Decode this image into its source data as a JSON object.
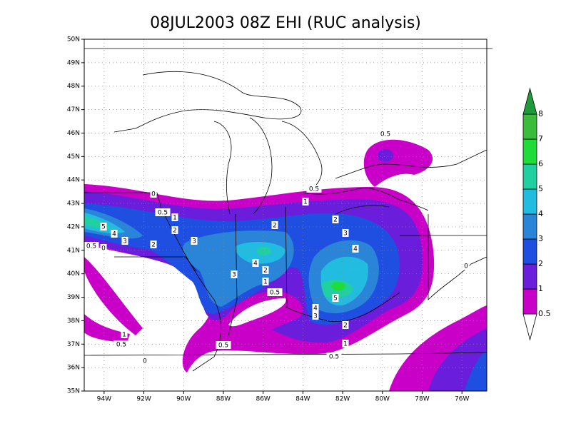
{
  "title": "08JUL2003 08Z EHI (RUC analysis)",
  "map": {
    "xlim": [
      -95,
      -74.75
    ],
    "ylim": [
      35,
      50
    ],
    "lat_ticks": [
      {
        "value": 35,
        "label": "35N"
      },
      {
        "value": 36,
        "label": "36N"
      },
      {
        "value": 37,
        "label": "37N"
      },
      {
        "value": 38,
        "label": "38N"
      },
      {
        "value": 39,
        "label": "39N"
      },
      {
        "value": 40,
        "label": "40N"
      },
      {
        "value": 41,
        "label": "41N"
      },
      {
        "value": 42,
        "label": "42N"
      },
      {
        "value": 43,
        "label": "43N"
      },
      {
        "value": 44,
        "label": "44N"
      },
      {
        "value": 45,
        "label": "45N"
      },
      {
        "value": 46,
        "label": "46N"
      },
      {
        "value": 47,
        "label": "47N"
      },
      {
        "value": 48,
        "label": "48N"
      },
      {
        "value": 49,
        "label": "49N"
      },
      {
        "value": 50,
        "label": "50N"
      }
    ],
    "lon_ticks": [
      {
        "value": -94,
        "label": "94W"
      },
      {
        "value": -92,
        "label": "92W"
      },
      {
        "value": -90,
        "label": "90W"
      },
      {
        "value": -88,
        "label": "88W"
      },
      {
        "value": -86,
        "label": "86W"
      },
      {
        "value": -84,
        "label": "84W"
      },
      {
        "value": -82,
        "label": "82W"
      },
      {
        "value": -80,
        "label": "80W"
      },
      {
        "value": -78,
        "label": "78W"
      },
      {
        "value": -76,
        "label": "76W"
      }
    ],
    "contour_labels": [
      "0.5",
      "0.5",
      "0",
      "1",
      "0.5",
      "1",
      "2",
      "5",
      "2",
      "2",
      "4",
      "3",
      "3",
      "2",
      "3",
      "0.5",
      "0",
      "4",
      "4",
      "2",
      "3",
      "1",
      "0.5",
      "5",
      "4",
      "3",
      "2",
      "1",
      "0.5",
      "1",
      "0.5",
      "0.5",
      "0",
      "0"
    ]
  },
  "colorbar": {
    "levels": [
      0.5,
      1,
      2,
      3,
      4,
      5,
      6,
      7,
      8
    ],
    "colors": [
      "#ffffff",
      "#c800c8",
      "#6a1edc",
      "#1f4fe0",
      "#2a84d8",
      "#22bce0",
      "#20d0a0",
      "#20dc3a",
      "#3cbc3c",
      "#1e9a3c"
    ]
  }
}
